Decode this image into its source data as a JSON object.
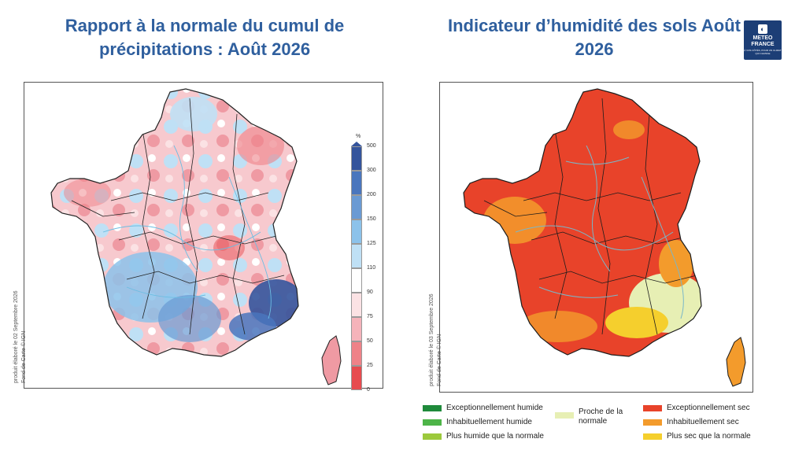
{
  "left": {
    "title": "Rapport à la normale du cumul de précipitations : Août 2026",
    "credit_1": "produit élaboré le 02 Septembre 2026",
    "credit_2": "Fond de Carte © IGN",
    "scale_unit": "%",
    "scale_ticks": [
      "500",
      "300",
      "200",
      "150",
      "125",
      "110",
      "90",
      "75",
      "50",
      "25",
      "0"
    ],
    "scale_colors": [
      "#34549c",
      "#4a76bd",
      "#6a9ad3",
      "#8cc2ea",
      "#bfe0f5",
      "#ffffff",
      "#fbe2e4",
      "#f5b3ba",
      "#ef8288",
      "#e74b4f"
    ]
  },
  "right": {
    "title": "Indicateur d’humidité des sols Août 2026",
    "credit_1": "produit élaboré le 03 Septembre 2026",
    "credit_2": "Fond de Carte © IGN",
    "logo_line1": "METEO",
    "logo_line2": "FRANCE",
    "logo_sub": "À VOS CÔTÉS, POUR UN CLIMAT QUI CHANGE",
    "legend": [
      {
        "label": "Exceptionnellement humide",
        "color": "#1f8a3b"
      },
      {
        "label": "Inhabituellement humide",
        "color": "#4db448"
      },
      {
        "label": "Plus humide que la normale",
        "color": "#9cc93c"
      },
      {
        "label": "Proche de la normale",
        "color": "#e7efb4"
      },
      {
        "label": "Exceptionnellement sec",
        "color": "#e8432a"
      },
      {
        "label": "Inhabituellement sec",
        "color": "#f39b2c"
      },
      {
        "label": "Plus sec que la normale",
        "color": "#f5cf2d"
      }
    ]
  }
}
